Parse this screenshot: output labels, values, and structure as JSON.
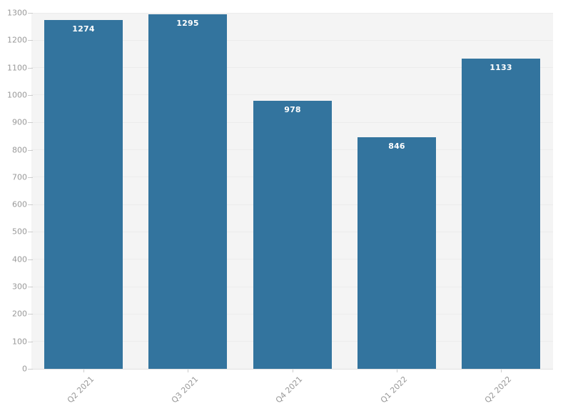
{
  "chart_data": {
    "type": "bar",
    "categories": [
      "Q2 2021",
      "Q3 2021",
      "Q4 2021",
      "Q1 2022",
      "Q2 2022"
    ],
    "values": [
      1274,
      1295,
      978,
      846,
      1133
    ],
    "title": "",
    "xlabel": "",
    "ylabel": "",
    "ylim": [
      0,
      1300
    ],
    "ytick_step": 100,
    "grid": true,
    "legend": false,
    "colors": {
      "bar": "#33749e",
      "plot_background": "#f4f4f4",
      "gridline": "#ececec",
      "axis_text": "#999999",
      "tick_mark": "#cccccc",
      "value_label": "#ffffff"
    }
  }
}
